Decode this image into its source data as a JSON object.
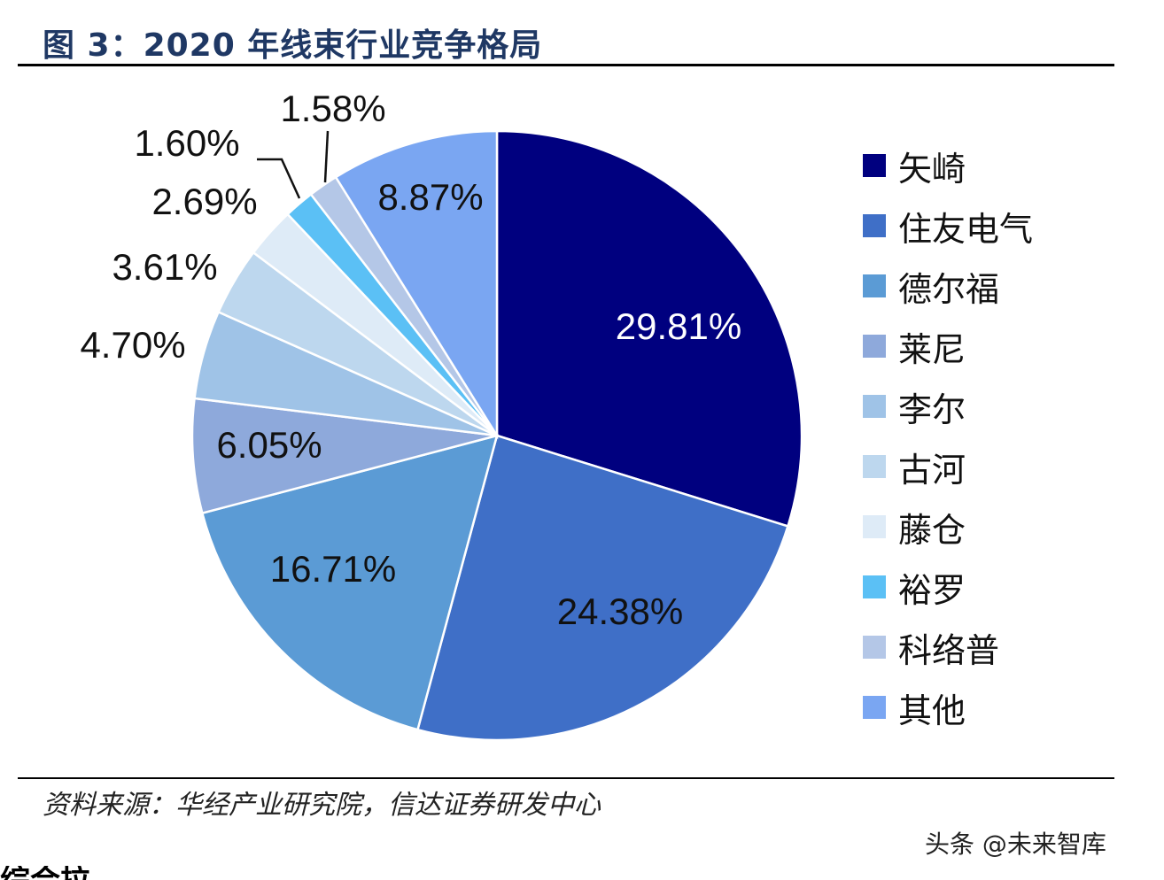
{
  "header": {
    "title": "图 3：2020 年线束行业竞争格局"
  },
  "chart_data": {
    "type": "pie",
    "title": "图 3：2020 年线束行业竞争格局",
    "unit": "%",
    "legend_position": "right",
    "slices": [
      {
        "label": "矢崎",
        "value": 29.81,
        "value_label": "29.81%",
        "color": "#00007f"
      },
      {
        "label": "住友电气",
        "value": 24.38,
        "value_label": "24.38%",
        "color": "#3f6fc7"
      },
      {
        "label": "德尔福",
        "value": 16.71,
        "value_label": "16.71%",
        "color": "#5b9bd5"
      },
      {
        "label": "莱尼",
        "value": 6.05,
        "value_label": "6.05%",
        "color": "#8ea9db"
      },
      {
        "label": "李尔",
        "value": 4.7,
        "value_label": "4.70%",
        "color": "#9fc3e7"
      },
      {
        "label": "古河",
        "value": 3.61,
        "value_label": "3.61%",
        "color": "#bdd7ee"
      },
      {
        "label": "藤仓",
        "value": 2.69,
        "value_label": "2.69%",
        "color": "#deebf7"
      },
      {
        "label": "裕罗",
        "value": 1.6,
        "value_label": "1.60%",
        "color": "#5bc0f5"
      },
      {
        "label": "科络普",
        "value": 1.58,
        "value_label": "1.58%",
        "color": "#b4c7e7"
      },
      {
        "label": "其他",
        "value": 8.87,
        "value_label": "8.87%",
        "color": "#7aa6f2"
      }
    ]
  },
  "footer": {
    "source": "资料来源：华经产业研究院，信达证券研发中心",
    "watermark": "头条 @未来智库",
    "cut_text": "综合拉"
  }
}
